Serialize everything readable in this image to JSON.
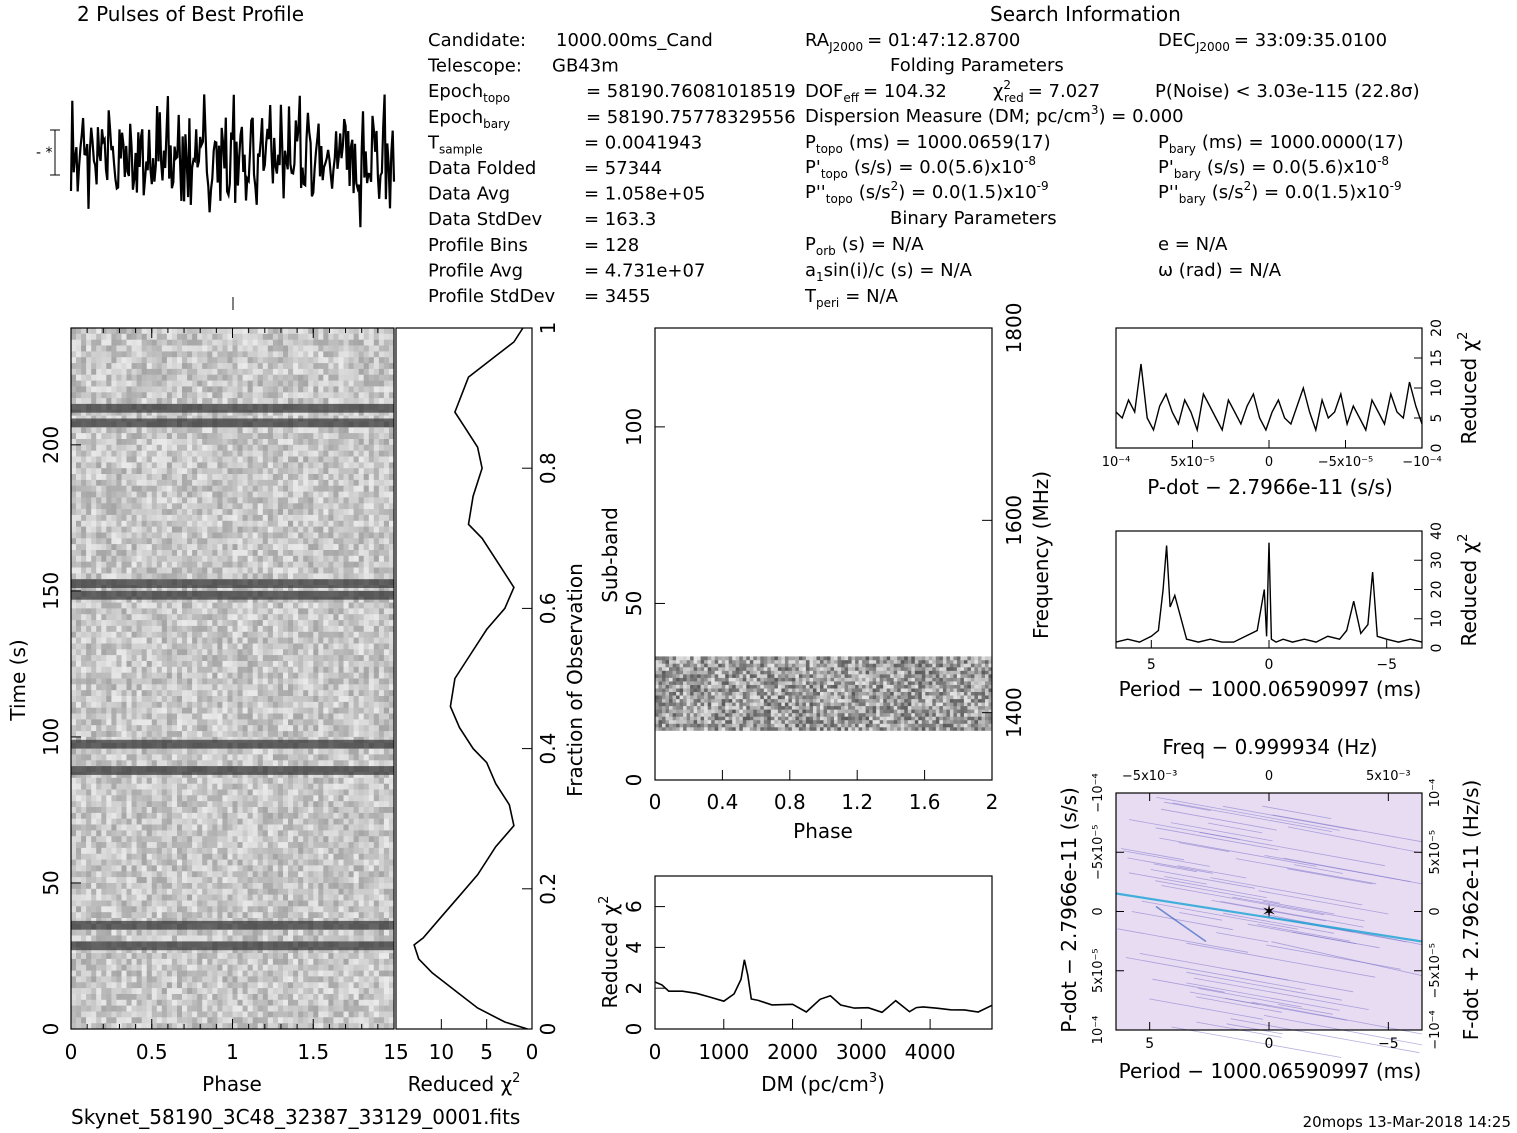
{
  "header": {
    "profile_title": "2 Pulses of Best Profile",
    "search_title": "Search Information"
  },
  "candidate_info": [
    {
      "key": "Candidate:",
      "sub": "",
      "value": "1000.00ms_Cand"
    },
    {
      "key": "Telescope:",
      "sub": "",
      "value": "GB43m"
    },
    {
      "key": "Epoch",
      "sub": "topo",
      "value": "= 58190.76081018519"
    },
    {
      "key": "Epoch",
      "sub": "bary",
      "value": "= 58190.75778329556"
    },
    {
      "key": "T",
      "sub": "sample",
      "value": "=   0.0041943"
    },
    {
      "key": "Data Folded",
      "sub": "",
      "value": "=   57344"
    },
    {
      "key": "Data Avg",
      "sub": "",
      "value": "=   1.058e+05"
    },
    {
      "key": "Data StdDev",
      "sub": "",
      "value": "=   163.3"
    },
    {
      "key": "Profile Bins",
      "sub": "",
      "value": "=   128"
    },
    {
      "key": "Profile Avg",
      "sub": "",
      "value": "=   4.731e+07"
    },
    {
      "key": "Profile StdDev",
      "sub": "",
      "value": "=   3455"
    }
  ],
  "search_info": {
    "ra": "RA",
    "ra_sub": "J2000",
    "ra_value": "= 01:47:12.8700",
    "dec": "DEC",
    "dec_sub": "J2000",
    "dec_value": "= 33:09:35.0100",
    "folding_title": "Folding Parameters",
    "dof": "DOF",
    "dof_sub": "eff",
    "dof_value": "= 104.32",
    "chi": "χ",
    "chi_sup": "2",
    "chi_sub": "red",
    "chi_value": "= 7.027",
    "pnoise": "P(Noise) < 3.03e-115   (22.8σ)",
    "dm_line": "Dispersion Measure (DM; pc/cm",
    "dm_sup": "3",
    "dm_value": ") = 0.000",
    "ptopo": "P",
    "ptopo_sub": "topo",
    "ptopo_value": "(ms) =   1000.0659(17)",
    "pbary": "P",
    "pbary_sub": "bary",
    "pbary_value": "(ms) =   1000.0000(17)",
    "pdtopo": "P'",
    "pdtopo_sub": "topo",
    "pdtopo_value": "(s/s) = 0.0(5.6)x10",
    "pdtopo_exp": "-8",
    "pdbary": "P'",
    "pdbary_sub": "bary",
    "pdbary_value": "(s/s) = 0.0(5.6)x10",
    "pdbary_exp": "-8",
    "pddtopo": "P''",
    "pddtopo_sub": "topo",
    "pddtopo_value_a": "(s/s",
    "pddtopo_value_sup": "2",
    "pddtopo_value_b": ") = 0.0(1.5)x10",
    "pddtopo_exp": "-9",
    "pddbary": "P''",
    "pddbary_sub": "bary",
    "pddbary_value_a": "(s/s",
    "pddbary_value_sup": "2",
    "pddbary_value_b": ") = 0.0(1.5)x10",
    "pddbary_exp": "-9",
    "binary_title": "Binary Parameters",
    "porb": "P",
    "porb_sub": "orb",
    "porb_value": "(s) = N/A",
    "e_value": "e = N/A",
    "a1": "a",
    "a1_sub": "1",
    "a1_value": "sin(i)/c (s) = N/A",
    "omega_value": "ω (rad) = N/A",
    "tperi": "T",
    "tperi_sub": "peri",
    "tperi_value": "= N/A"
  },
  "footer": {
    "filename": "Skynet_58190_3C48_32387_33129_0001.fits",
    "stamp": "20mops 13-Mar-2018 14:25"
  },
  "chart_data": [
    {
      "id": "profile",
      "type": "line",
      "title": "2 Pulses of Best Profile",
      "xlabel": "",
      "ylabel": "",
      "x": [
        0,
        0.03,
        0.06,
        0.09,
        0.12,
        0.15,
        0.18,
        0.21,
        0.24,
        0.27,
        0.3,
        0.33,
        0.36,
        0.39,
        0.42,
        0.45,
        0.48,
        0.51,
        0.54,
        0.57,
        0.6,
        0.63,
        0.66,
        0.69,
        0.72,
        0.75,
        0.78,
        0.81,
        0.84,
        0.87,
        0.9,
        0.93,
        0.96,
        1.0
      ],
      "values": [
        0.35,
        -0.6,
        0.9,
        -0.2,
        0.5,
        -0.9,
        0.1,
        0.7,
        -0.4,
        0.3,
        -1.0,
        0.6,
        -0.1,
        0.8,
        -0.7,
        0.2,
        -0.3,
        1.0,
        -0.5,
        0.4,
        -0.8,
        0.1,
        0.6,
        -0.9,
        0.3,
        -0.2,
        0.8,
        -0.6,
        0.5,
        -0.1,
        -0.7,
        0.2,
        -0.4,
        0.35
      ],
      "repeat_pulses": 2
    },
    {
      "id": "time_phase",
      "type": "heatmap",
      "xlabel": "Phase",
      "ylabel": "Time (s)",
      "xlim": [
        0,
        2
      ],
      "ylim": [
        0,
        240
      ],
      "x_ticks": [
        "0",
        "0.5",
        "1",
        "1.5"
      ],
      "y_ticks": [
        "0",
        "50",
        "100",
        "150",
        "200"
      ],
      "right_ticks": [
        "0",
        "0.2",
        "0.4",
        "0.6",
        "0.8",
        "1"
      ],
      "right_label": "Fraction of Observation",
      "dark_bands": [
        {
          "t_start": 27,
          "t_end": 30,
          "phase_start": 0.0,
          "phase_end": 1.0
        },
        {
          "t_start": 34,
          "t_end": 37,
          "phase_start": 0.0,
          "phase_end": 1.0
        },
        {
          "t_start": 87,
          "t_end": 90,
          "phase_start": 0.0,
          "phase_end": 1.0
        },
        {
          "t_start": 96,
          "t_end": 99,
          "phase_start": 0.0,
          "phase_end": 1.0
        },
        {
          "t_start": 147,
          "t_end": 150,
          "phase_start": 0.0,
          "phase_end": 1.0
        },
        {
          "t_start": 151,
          "t_end": 154,
          "phase_start": 0.0,
          "phase_end": 1.0
        },
        {
          "t_start": 206,
          "t_end": 209,
          "phase_start": 0.0,
          "phase_end": 1.0
        },
        {
          "t_start": 211,
          "t_end": 214,
          "phase_start": 0.0,
          "phase_end": 1.0
        }
      ]
    },
    {
      "id": "chi_vs_time",
      "type": "line",
      "xlabel": "Reduced χ²",
      "xlim": [
        15,
        0
      ],
      "x_ticks": [
        "15",
        "10",
        "5",
        "0"
      ],
      "points": [
        [
          0.5,
          0
        ],
        [
          3,
          0.01
        ],
        [
          6,
          0.03
        ],
        [
          8,
          0.05
        ],
        [
          10,
          0.07
        ],
        [
          11,
          0.08
        ],
        [
          12.5,
          0.1
        ],
        [
          13,
          0.12
        ],
        [
          12,
          0.13
        ],
        [
          10,
          0.16
        ],
        [
          8,
          0.19
        ],
        [
          6,
          0.22
        ],
        [
          4,
          0.26
        ],
        [
          2,
          0.29
        ],
        [
          2.5,
          0.32
        ],
        [
          4,
          0.35
        ],
        [
          5,
          0.38
        ],
        [
          6.5,
          0.4
        ],
        [
          8,
          0.43
        ],
        [
          9,
          0.46
        ],
        [
          8.5,
          0.5
        ],
        [
          7,
          0.53
        ],
        [
          5,
          0.57
        ],
        [
          3,
          0.6
        ],
        [
          2,
          0.63
        ],
        [
          3.5,
          0.66
        ],
        [
          5.5,
          0.7
        ],
        [
          7,
          0.72
        ],
        [
          6.5,
          0.76
        ],
        [
          5.5,
          0.8
        ],
        [
          6,
          0.83
        ],
        [
          7.5,
          0.86
        ],
        [
          8.5,
          0.88
        ],
        [
          7,
          0.93
        ],
        [
          4,
          0.96
        ],
        [
          2,
          0.98
        ],
        [
          1,
          1.0
        ]
      ]
    },
    {
      "id": "subband_phase",
      "type": "heatmap",
      "xlabel": "Phase",
      "ylabel": "Sub-band",
      "xlim": [
        0,
        2
      ],
      "ylim": [
        0,
        128
      ],
      "x_ticks": [
        "0",
        "0.4",
        "0.8",
        "1.2",
        "1.6",
        "2"
      ],
      "y_ticks": [
        "0",
        "50",
        "100"
      ],
      "right_label": "Frequency (MHz)",
      "right_ticks": [
        "1400",
        "1600",
        "1800"
      ],
      "filled_subbands": [
        14,
        35
      ]
    },
    {
      "id": "dm_curve",
      "type": "line",
      "xlabel": "DM (pc/cm³)",
      "ylabel": "Reduced χ²",
      "xlim": [
        0,
        4900
      ],
      "ylim": [
        0,
        7.5
      ],
      "x_ticks": [
        "0",
        "1000",
        "2000",
        "3000",
        "4000"
      ],
      "y_ticks": [
        "0",
        "2",
        "4",
        "6"
      ],
      "x": [
        0,
        100,
        200,
        400,
        600,
        800,
        1000,
        1150,
        1250,
        1300,
        1350,
        1400,
        1500,
        1700,
        2000,
        2200,
        2400,
        2550,
        2700,
        2900,
        3100,
        3300,
        3500,
        3700,
        3800,
        3900,
        4100,
        4300,
        4500,
        4700,
        4900
      ],
      "values": [
        2.3,
        2.0,
        1.9,
        1.8,
        1.6,
        1.6,
        1.5,
        1.8,
        2.6,
        3.4,
        2.5,
        1.5,
        1.3,
        1.2,
        1.2,
        1.0,
        1.3,
        1.6,
        1.2,
        1.0,
        1.1,
        0.9,
        1.3,
        1.0,
        1.2,
        1.1,
        1.0,
        0.9,
        1.1,
        0.9,
        1.0
      ]
    },
    {
      "id": "pdot_chi",
      "type": "line",
      "xlabel": "P-dot − 2.7966e-11 (s/s)",
      "ylabel": "Reduced χ²",
      "xlim": [
        0.0001,
        -0.0001
      ],
      "ylim": [
        0,
        20
      ],
      "x_ticks": [
        "10⁻⁴",
        "5x10⁻⁵",
        "0",
        "−5x10⁻⁵",
        "−10⁻⁴"
      ],
      "y_ticks": [
        "0",
        "5",
        "10",
        "15",
        "20"
      ],
      "values": [
        6,
        5,
        8,
        6,
        14,
        5,
        3,
        7,
        9,
        6,
        4,
        8,
        6,
        3,
        9,
        7,
        5,
        3,
        8,
        6,
        4,
        7,
        9,
        5,
        3,
        6,
        8,
        5,
        4,
        7,
        10,
        6,
        3,
        8,
        5,
        6,
        9,
        4,
        7,
        5,
        3,
        8,
        6,
        4,
        9,
        6,
        5,
        11,
        7,
        4
      ]
    },
    {
      "id": "period_chi",
      "type": "line",
      "xlabel": "Period − 1000.06590997 (ms)",
      "ylabel": "Reduced χ²",
      "xlim": [
        6.5,
        -6.5
      ],
      "ylim": [
        0,
        40
      ],
      "x_ticks": [
        "5",
        "0",
        "−5"
      ],
      "y_ticks": [
        "0",
        "10",
        "20",
        "30",
        "40"
      ],
      "x": [
        6.5,
        6,
        5.5,
        5,
        4.7,
        4.5,
        4.35,
        4.2,
        4,
        3.5,
        3,
        2.5,
        2,
        1.5,
        1,
        0.5,
        0.2,
        0.1,
        0,
        -0.1,
        -0.3,
        -0.6,
        -1,
        -1.5,
        -2,
        -2.5,
        -3,
        -3.3,
        -3.6,
        -3.9,
        -4.2,
        -4.4,
        -4.6,
        -5,
        -5.5,
        -6,
        -6.5
      ],
      "values": [
        2,
        3,
        2,
        4,
        6,
        20,
        35,
        14,
        18,
        3,
        2,
        3,
        2,
        2,
        4,
        6,
        20,
        4,
        36,
        3,
        2,
        3,
        2,
        3,
        2,
        4,
        3,
        6,
        16,
        5,
        8,
        26,
        4,
        3,
        2,
        3,
        2
      ]
    },
    {
      "id": "ppdot_plane",
      "type": "heatmap",
      "title": "Freq − 0.999934 (Hz)",
      "xlabel": "Period − 1000.06590997 (ms)",
      "ylabel": "P-dot − 2.7966e-11 (s/s)",
      "right_label": "F-dot + 2.7962e-11 (Hz/s)",
      "x_ticks": [
        "5",
        "0",
        "−5"
      ],
      "top_ticks": [
        "−5x10⁻³",
        "0",
        "5x10⁻³"
      ],
      "y_ticks": [
        "10⁻⁴",
        "5x10⁻⁵",
        "0",
        "−5x10⁻⁵",
        "−10⁻⁴"
      ],
      "right_ticks": [
        "−10⁻⁴",
        "−5x10⁻⁵",
        "0",
        "5x10⁻⁵",
        "10⁻⁴"
      ],
      "best": [
        0,
        0
      ]
    }
  ]
}
